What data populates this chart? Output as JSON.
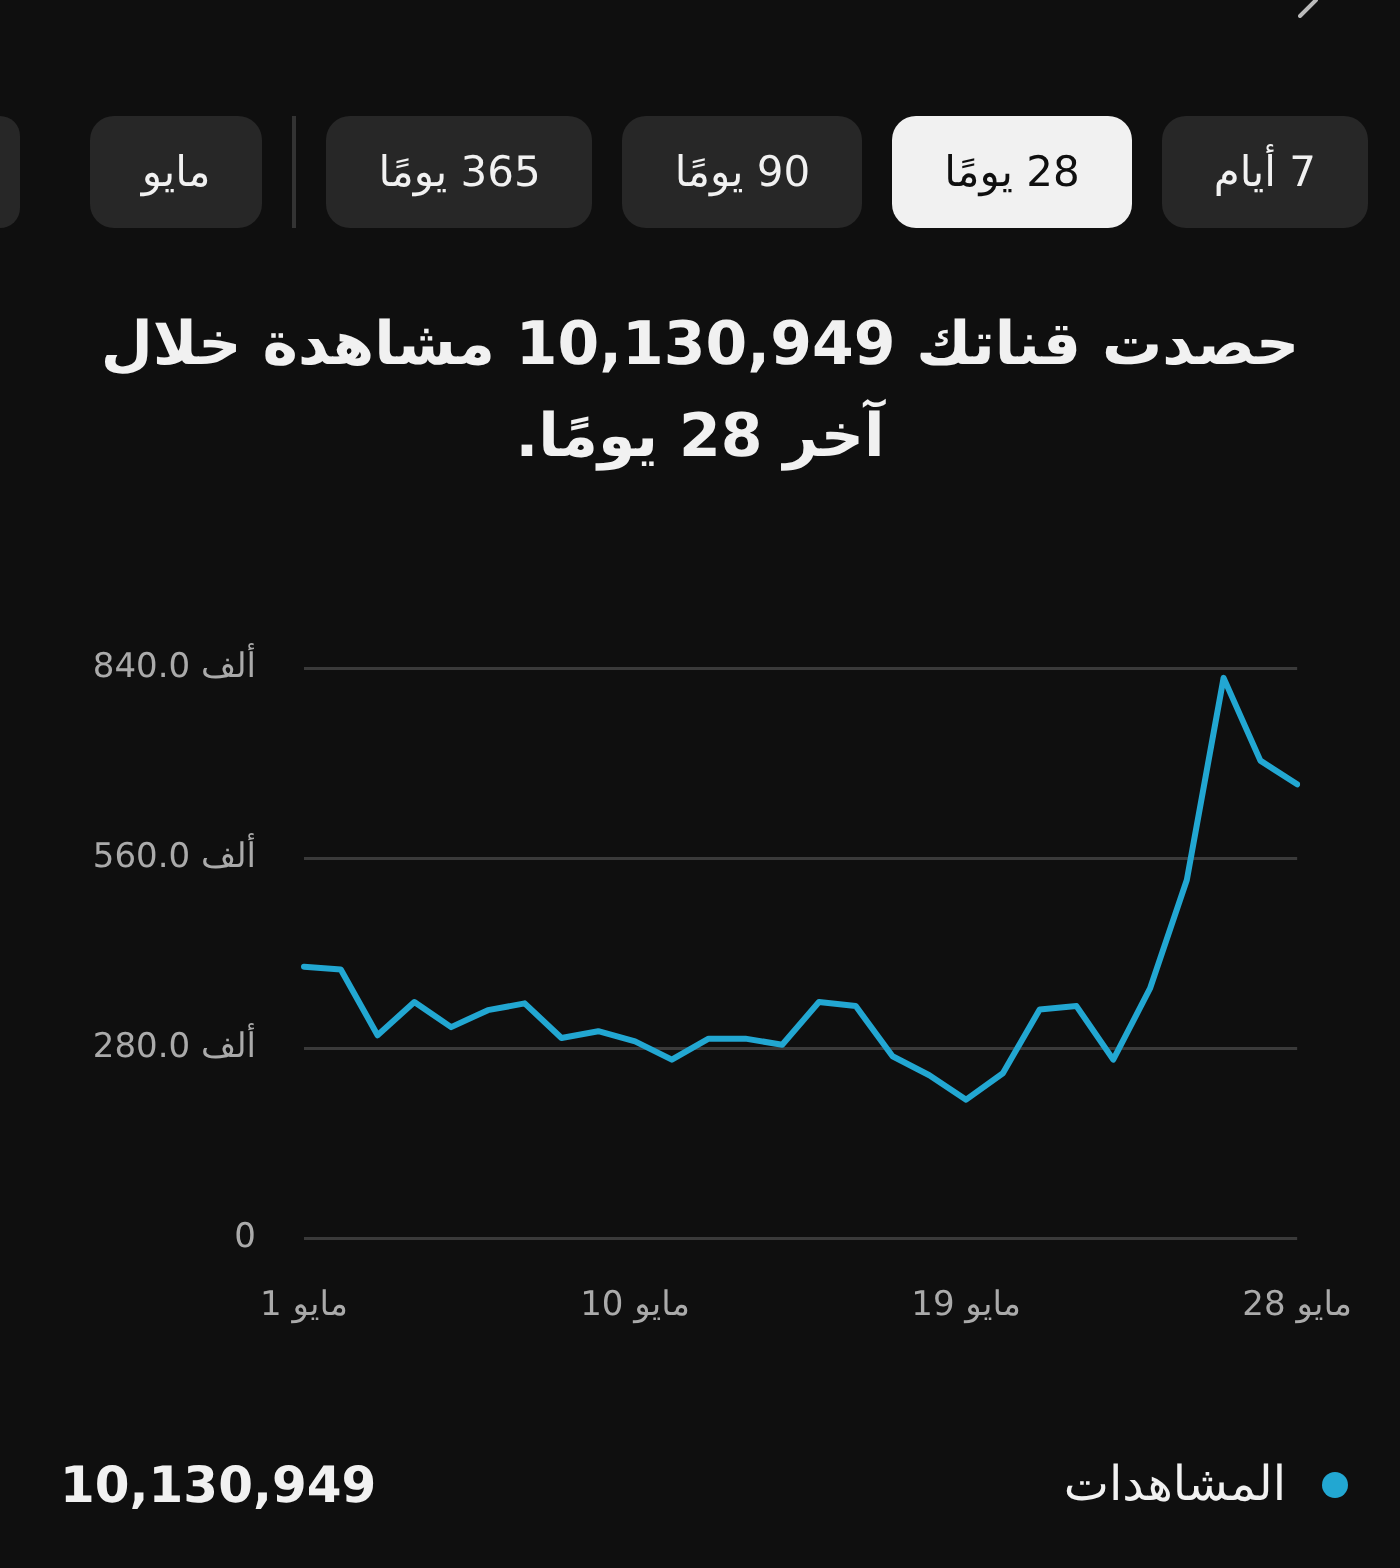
{
  "chart_data": {
    "type": "line",
    "title": "حصدت قناتك 10,130,949 مشاهدة خلال آخر 28 يومًا.",
    "categories": [
      "1 مايو",
      null,
      null,
      null,
      null,
      null,
      null,
      null,
      null,
      "10 مايو",
      null,
      null,
      null,
      null,
      null,
      null,
      null,
      null,
      "19 مايو",
      null,
      null,
      null,
      null,
      null,
      null,
      null,
      null,
      "28 مايو"
    ],
    "series": [
      {
        "name": "المشاهدات",
        "color": "#22a7d2",
        "values": [
          400,
          396,
          299,
          348,
          311,
          336,
          346,
          295,
          305,
          290,
          263,
          294,
          294,
          285,
          348,
          342,
          268,
          240,
          204,
          243,
          337,
          342,
          263,
          368,
          528,
          826,
          704,
          669
        ]
      }
    ],
    "ylim": [
      0,
      840
    ],
    "yticks": [
      0,
      {
        "value": 280,
        "label": "280.0 ألف"
      },
      {
        "value": 560,
        "label": "560.0 ألف"
      },
      {
        "value": 840,
        "label": "840.0 ألف"
      }
    ],
    "grid": "y",
    "legend": "bottom",
    "annotations": [
      "7 أيام",
      "28 يومًا",
      "90 يومًا",
      "365 يومًا",
      "مايو",
      "10,130,949"
    ]
  }
}
